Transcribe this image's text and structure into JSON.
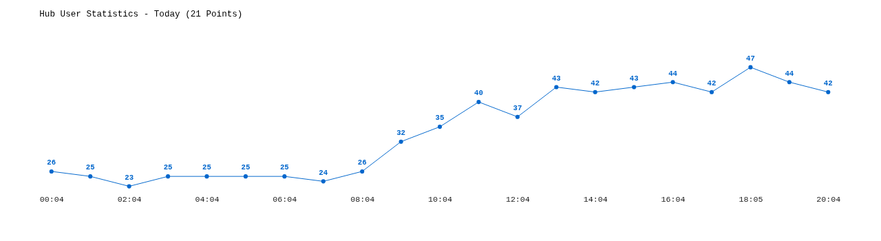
{
  "chart_data": {
    "type": "line",
    "title": "Hub User Statistics - Today (21 Points)",
    "categories": [
      "00:04",
      null,
      "02:04",
      null,
      "04:04",
      null,
      "06:04",
      null,
      "08:04",
      null,
      "10:04",
      null,
      "12:04",
      null,
      "14:04",
      null,
      "16:04",
      null,
      "18:05",
      null,
      "20:04"
    ],
    "series": [
      {
        "color": "#0066cc",
        "values": [
          26,
          25,
          23,
          25,
          25,
          25,
          25,
          24,
          26,
          32,
          35,
          40,
          37,
          43,
          42,
          43,
          44,
          42,
          47,
          44,
          42
        ]
      }
    ],
    "data_labels": true,
    "marker": "circle",
    "line_style": "solid",
    "grid": false
  }
}
